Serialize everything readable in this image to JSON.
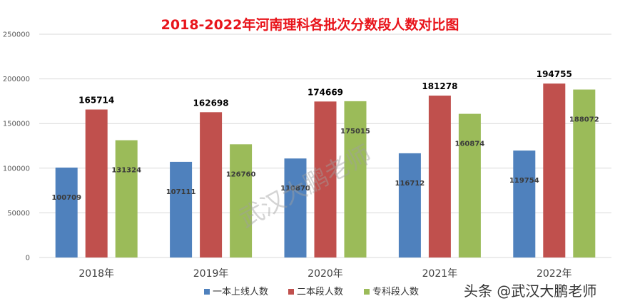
{
  "chart_data": {
    "type": "bar",
    "title": "2018-2022年河南理科各批次分数段人数对比图",
    "categories": [
      "2018年",
      "2019年",
      "2020年",
      "2021年",
      "2022年"
    ],
    "series": [
      {
        "name": "一本上线人数",
        "color": "#4f81bd",
        "values": [
          100709,
          107111,
          110870,
          116712,
          119754
        ]
      },
      {
        "name": "二本段人数",
        "color": "#c0504d",
        "values": [
          165714,
          162698,
          174669,
          181278,
          194755
        ]
      },
      {
        "name": "专科段人数",
        "color": "#9bbb59",
        "values": [
          131324,
          126760,
          175015,
          160874,
          188072
        ]
      }
    ],
    "ylim": [
      0,
      250000
    ],
    "yticks": [
      "0",
      "50000",
      "100000",
      "150000",
      "200000",
      "250000"
    ],
    "grid": true,
    "legend_position": "bottom"
  },
  "watermark_corner": "头条 @武汉大鹏老师",
  "watermark_diagonal": "武汉大鹏老师"
}
